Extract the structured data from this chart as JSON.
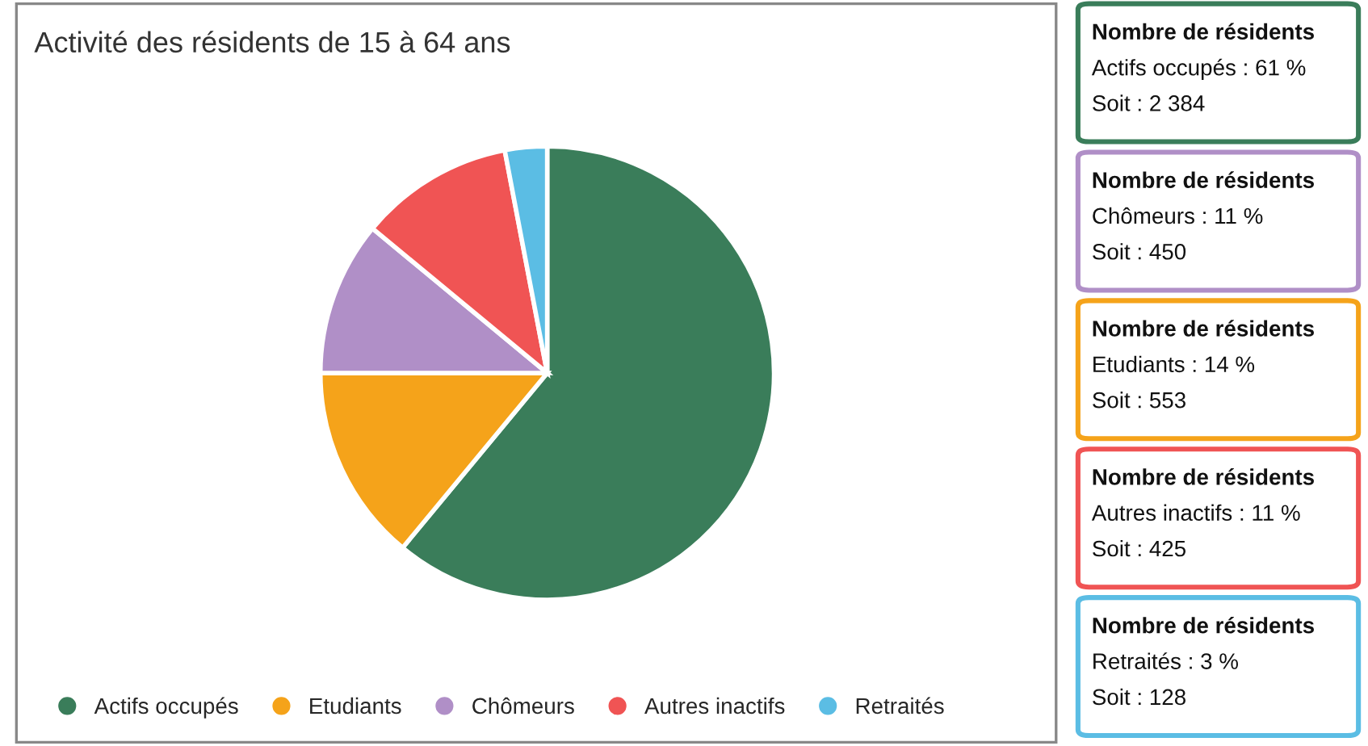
{
  "chart_data": [
    {
      "type": "pie",
      "title": "Activité des résidents de 15 à 64 ans",
      "categories": [
        "Actifs occupés",
        "Etudiants",
        "Chômeurs",
        "Autres inactifs",
        "Retraités"
      ],
      "values": [
        61,
        14,
        11,
        11,
        3
      ],
      "colors": [
        "#3a7d5a",
        "#f5a31a",
        "#b08fc7",
        "#f05454",
        "#5bbde4"
      ],
      "legend": "bottom"
    },
    {
      "type": "other",
      "colors": [
        "#3a7d5a",
        "#b08fc7",
        "#f5a31a",
        "#f05454",
        "#5bbde4"
      ],
      "annotations": [
        "Nombre de résidents",
        "Actifs occupés : 61 %",
        "Soit : 2 384",
        "Nombre de résidents",
        "Chômeurs : 11 %",
        "Soit : 450",
        "Nombre de résidents",
        "Etudiants : 14 %",
        "Soit : 553",
        "Nombre de résidents",
        "Autres inactifs : 11 %",
        "Soit : 425",
        "Nombre de résidents",
        "Retraités : 3 %",
        "Soit : 128"
      ]
    }
  ]
}
